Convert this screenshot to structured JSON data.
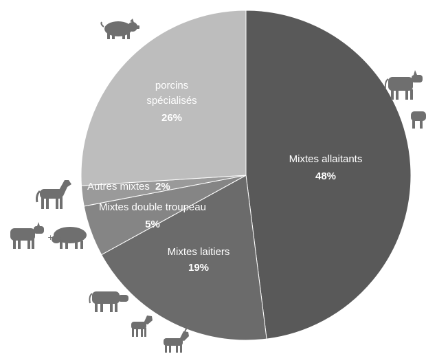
{
  "chart_data": {
    "type": "pie",
    "title": "",
    "slices": [
      {
        "label": "Mixtes allaitants",
        "value": 48,
        "display": "48%",
        "color": "#595959"
      },
      {
        "label": "Mixtes laitiers",
        "value": 19,
        "display": "19%",
        "color": "#6b6b6b"
      },
      {
        "label": "Mixtes double troupeau",
        "value": 5,
        "display": "5%",
        "color": "#858585"
      },
      {
        "label": "Autres mixtes",
        "value": 2,
        "display": "2%",
        "color": "#9a9a9a"
      },
      {
        "label": "porcins spécialisés",
        "value": 26,
        "display": "26%",
        "color": "#bdbdbd"
      }
    ],
    "label_lines": {
      "porcins": [
        "porcins",
        "spécialisés"
      ],
      "allaitants": [
        "Mixtes allaitants"
      ],
      "laitiers": [
        "Mixtes laitiers"
      ],
      "double": [
        "Mixtes double troupeau"
      ],
      "autres": [
        "Autres mixtes"
      ]
    },
    "start_angle": "12 o'clock",
    "direction": "clockwise",
    "legend": "none"
  },
  "icons": {
    "pig": "pig-icon",
    "beef_cows": "cow-icon",
    "horse": "horse-icon",
    "cow_plus_sheep": "cow-and-sheep-icon",
    "dairy_cow": "dairy-cow-icon",
    "goats": "goat-icon",
    "plus_sign": "+"
  }
}
